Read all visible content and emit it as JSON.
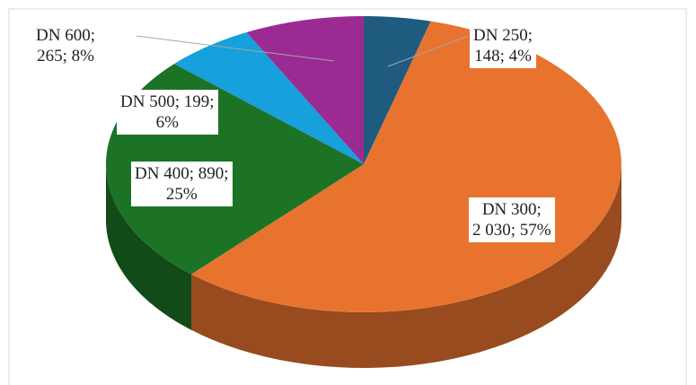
{
  "chart_data": {
    "type": "pie3d",
    "values": [
      148,
      2030,
      890,
      199,
      265
    ],
    "value_labels": [
      "DN 250;\n148; 4%",
      "DN 300;\n2 030; 57%",
      "DN 400; 890;\n25%",
      "DN 500; 199;\n6%",
      "DN 600;\n265; 8%"
    ],
    "colors": [
      "#1f5b7e",
      "#e8732f",
      "#1c7326",
      "#16a0dc",
      "#9b2a93"
    ]
  }
}
